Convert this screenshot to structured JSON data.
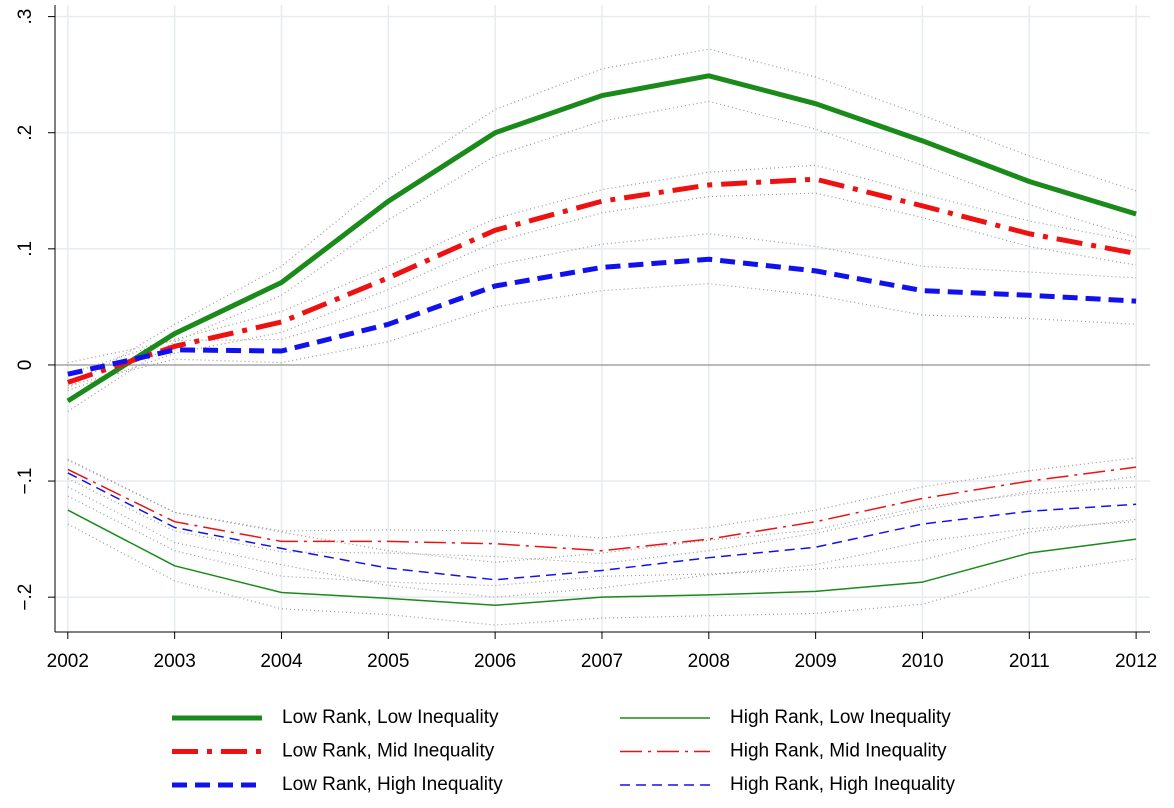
{
  "chart_data": {
    "type": "line",
    "x": [
      2002,
      2003,
      2004,
      2005,
      2006,
      2007,
      2008,
      2009,
      2010,
      2011,
      2012
    ],
    "xlim": [
      2001.88,
      2012.13
    ],
    "xticks": [
      2002,
      2003,
      2004,
      2005,
      2006,
      2007,
      2008,
      2009,
      2010,
      2011,
      2012
    ],
    "ylim": [
      -0.23,
      0.31
    ],
    "yticks": [
      {
        "value": -0.2,
        "label": "−.2"
      },
      {
        "value": -0.1,
        "label": "−.1"
      },
      0,
      {
        "value": 0.1,
        "label": ".1"
      },
      {
        "value": 0.2,
        "label": ".2"
      },
      {
        "value": 0.3,
        "label": ".3"
      }
    ],
    "grid": true,
    "ci_color": "#999999",
    "series": [
      {
        "name": "Low Rank, Low Inequality",
        "color": "#1a8a1a",
        "width": 5,
        "dash": "none",
        "values": [
          -0.031,
          0.027,
          0.071,
          0.141,
          0.2,
          0.232,
          0.249,
          0.225,
          0.193,
          0.158,
          0.13
        ],
        "lower": [
          -0.04,
          0.02,
          0.06,
          0.125,
          0.18,
          0.21,
          0.227,
          0.203,
          0.172,
          0.138,
          0.11
        ],
        "upper": [
          -0.02,
          0.035,
          0.085,
          0.16,
          0.22,
          0.255,
          0.272,
          0.248,
          0.215,
          0.18,
          0.15
        ]
      },
      {
        "name": "High Rank, Low Inequality",
        "color": "#1a8a1a",
        "width": 1.5,
        "dash": "none",
        "values": [
          -0.125,
          -0.173,
          -0.196,
          -0.201,
          -0.207,
          -0.2,
          -0.198,
          -0.195,
          -0.187,
          -0.162,
          -0.15
        ],
        "lower": [
          -0.137,
          -0.186,
          -0.21,
          -0.215,
          -0.224,
          -0.218,
          -0.216,
          -0.214,
          -0.206,
          -0.18,
          -0.167
        ],
        "upper": [
          -0.113,
          -0.16,
          -0.182,
          -0.187,
          -0.19,
          -0.182,
          -0.18,
          -0.176,
          -0.168,
          -0.144,
          -0.133
        ]
      },
      {
        "name": "Low Rank, Mid Inequality",
        "color": "#ee1111",
        "width": 5,
        "dash": "26,9,5,9",
        "values": [
          -0.015,
          0.016,
          0.037,
          0.075,
          0.116,
          0.141,
          0.155,
          0.16,
          0.137,
          0.113,
          0.096
        ],
        "lower": [
          -0.022,
          0.01,
          0.028,
          0.065,
          0.106,
          0.131,
          0.145,
          0.148,
          0.127,
          0.102,
          0.086
        ],
        "upper": [
          -0.008,
          0.022,
          0.046,
          0.085,
          0.126,
          0.151,
          0.166,
          0.172,
          0.147,
          0.124,
          0.106
        ]
      },
      {
        "name": "High Rank, Mid Inequality",
        "color": "#ee1111",
        "width": 1.5,
        "dash": "22,6,3,6",
        "values": [
          -0.09,
          -0.135,
          -0.152,
          -0.152,
          -0.154,
          -0.16,
          -0.15,
          -0.135,
          -0.115,
          -0.1,
          -0.088
        ],
        "lower": [
          -0.098,
          -0.143,
          -0.161,
          -0.162,
          -0.165,
          -0.171,
          -0.16,
          -0.145,
          -0.125,
          -0.109,
          -0.096
        ],
        "upper": [
          -0.082,
          -0.127,
          -0.143,
          -0.142,
          -0.143,
          -0.149,
          -0.14,
          -0.125,
          -0.105,
          -0.091,
          -0.08
        ]
      },
      {
        "name": "Low Rank, High Inequality",
        "color": "#1111ee",
        "width": 5,
        "dash": "15,8",
        "values": [
          -0.008,
          0.013,
          0.012,
          0.035,
          0.068,
          0.084,
          0.091,
          0.081,
          0.064,
          0.06,
          0.055
        ],
        "lower": [
          -0.018,
          0.005,
          0.002,
          0.02,
          0.05,
          0.064,
          0.07,
          0.06,
          0.043,
          0.04,
          0.035
        ],
        "upper": [
          0.002,
          0.021,
          0.022,
          0.05,
          0.086,
          0.104,
          0.113,
          0.102,
          0.085,
          0.08,
          0.075
        ]
      },
      {
        "name": "High Rank, High Inequality",
        "color": "#1111ee",
        "width": 1.5,
        "dash": "10,6",
        "values": [
          -0.093,
          -0.14,
          -0.158,
          -0.175,
          -0.185,
          -0.177,
          -0.166,
          -0.157,
          -0.137,
          -0.126,
          -0.12
        ],
        "lower": [
          -0.105,
          -0.153,
          -0.172,
          -0.19,
          -0.2,
          -0.192,
          -0.181,
          -0.172,
          -0.152,
          -0.141,
          -0.135
        ],
        "upper": [
          -0.081,
          -0.127,
          -0.144,
          -0.16,
          -0.17,
          -0.162,
          -0.151,
          -0.142,
          -0.122,
          -0.111,
          -0.105
        ]
      }
    ]
  }
}
